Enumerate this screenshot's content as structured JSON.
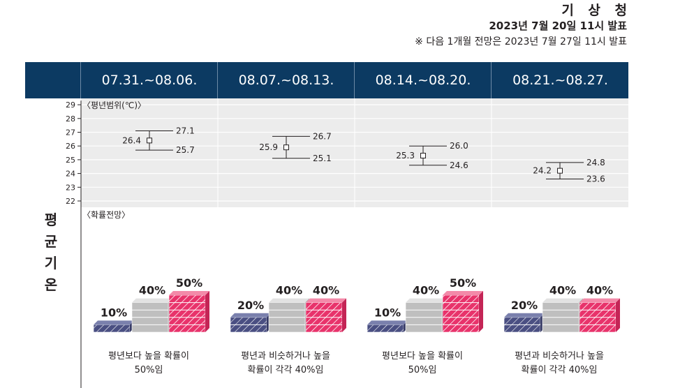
{
  "header": {
    "agency": "기 상 청",
    "issued": "2023년 7월 20일 11시 발표",
    "next_note": "※ 다음 1개월 전망은 2023년 7월 27일 11시 발표"
  },
  "weeks": [
    "07.31.~08.06.",
    "08.07.~08.13.",
    "08.14.~08.20.",
    "08.21.~08.27."
  ],
  "row_label": [
    "평",
    "균",
    "기",
    "온"
  ],
  "range_panel_label": "〈평년범위(℃)〉",
  "prob_panel_label": "〈확률전망〉",
  "captions": [
    [
      "평년보다 높을 확률이",
      "50%임"
    ],
    [
      "평년과 비슷하거나 높을",
      "확률이 각각 40%임"
    ],
    [
      "평년보다 높을 확률이",
      "50%임"
    ],
    [
      "평년과 비슷하거나 높을",
      "확률이 각각 40%임"
    ]
  ],
  "colors": {
    "header_bg": "#0c3a62",
    "below": "#4a4f82",
    "normal": "#bfbfbf",
    "above": "#e8336b",
    "panel_bg": "#ececec"
  },
  "chart_data": [
    {
      "type": "errorbar",
      "title": "〈평년범위(℃)〉",
      "categories": [
        "07.31.~08.06.",
        "08.07.~08.13.",
        "08.14.~08.20.",
        "08.21.~08.27."
      ],
      "ylim": [
        22,
        29
      ],
      "yticks": [
        22,
        23,
        24,
        25,
        26,
        27,
        28,
        29
      ],
      "grid": true,
      "series": [
        {
          "name": "평년",
          "values": [
            26.4,
            25.9,
            25.3,
            24.2
          ],
          "upper": [
            27.1,
            26.7,
            26.0,
            24.8
          ],
          "lower": [
            25.7,
            25.1,
            24.6,
            23.6
          ]
        }
      ]
    },
    {
      "type": "bar",
      "title": "〈확률전망〉",
      "categories": [
        "07.31.~08.06.",
        "08.07.~08.13.",
        "08.14.~08.20.",
        "08.21.~08.27."
      ],
      "series": [
        {
          "values": [
            10,
            20,
            10,
            20
          ]
        },
        {
          "values": [
            40,
            40,
            40,
            40
          ]
        },
        {
          "values": [
            50,
            40,
            50,
            40
          ]
        }
      ],
      "value_suffix": "%"
    }
  ]
}
